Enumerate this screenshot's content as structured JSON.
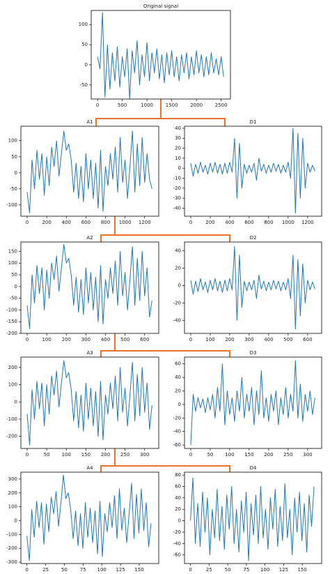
{
  "chart_data": [
    {
      "type": "line",
      "title": "Original signal",
      "color": "#1f77b4",
      "x": [
        0,
        50,
        100,
        150,
        200,
        250,
        300,
        350,
        400,
        450,
        500,
        550,
        600,
        650,
        700,
        750,
        800,
        850,
        900,
        950,
        1000,
        1050,
        1100,
        1150,
        1200,
        1250,
        1300,
        1350,
        1400,
        1450,
        1500,
        1550,
        1600,
        1650,
        1700,
        1750,
        1800,
        1850,
        1900,
        1950,
        2000,
        2050,
        2100,
        2150,
        2200,
        2250,
        2300,
        2350,
        2400,
        2450,
        2500,
        2550
      ],
      "values": [
        20,
        -10,
        130,
        -80,
        50,
        -60,
        30,
        -40,
        45,
        -55,
        20,
        -30,
        40,
        -85,
        35,
        -20,
        60,
        -50,
        25,
        -30,
        55,
        -40,
        30,
        -20,
        40,
        -35,
        25,
        -45,
        30,
        -25,
        35,
        -30,
        20,
        -40,
        25,
        -20,
        30,
        -35,
        20,
        -25,
        35,
        -20,
        25,
        -30,
        20,
        -25,
        30,
        -20,
        15,
        -25,
        20,
        -30
      ],
      "xlim": [
        -128,
        2688
      ],
      "xticks": [
        0,
        500,
        1000,
        1500,
        2000,
        2500
      ],
      "ylim": [
        -85,
        135
      ],
      "yticks": [
        -50,
        0,
        50,
        100
      ]
    },
    {
      "type": "line",
      "title": "A1",
      "color": "#1f77b4",
      "x": [
        0,
        25,
        50,
        75,
        100,
        125,
        150,
        175,
        200,
        225,
        250,
        275,
        300,
        325,
        350,
        375,
        400,
        425,
        450,
        475,
        500,
        525,
        550,
        575,
        600,
        625,
        650,
        675,
        700,
        725,
        750,
        775,
        800,
        825,
        850,
        875,
        900,
        925,
        950,
        975,
        1000,
        1025,
        1050,
        1075,
        1100,
        1125,
        1150,
        1175,
        1200,
        1225,
        1250,
        1275
      ],
      "values": [
        -60,
        -125,
        40,
        -50,
        70,
        -20,
        60,
        -70,
        50,
        -40,
        80,
        20,
        100,
        -10,
        60,
        130,
        70,
        90,
        40,
        -60,
        30,
        -80,
        20,
        -90,
        60,
        -50,
        40,
        -80,
        30,
        -110,
        70,
        -120,
        20,
        -40,
        60,
        -20,
        80,
        -60,
        110,
        -30,
        40,
        -80,
        20,
        130,
        -60,
        90,
        -40,
        110,
        -30,
        60,
        -20,
        -50
      ],
      "xlim": [
        -64,
        1344
      ],
      "xticks": [
        0,
        200,
        400,
        600,
        800,
        1000,
        1200
      ],
      "ylim": [
        -135,
        145
      ],
      "yticks": [
        -100,
        -50,
        0,
        50,
        100
      ]
    },
    {
      "type": "line",
      "title": "D1",
      "color": "#1f77b4",
      "x": [
        0,
        25,
        50,
        75,
        100,
        125,
        150,
        175,
        200,
        225,
        250,
        275,
        300,
        325,
        350,
        375,
        400,
        425,
        450,
        475,
        500,
        525,
        550,
        575,
        600,
        625,
        650,
        675,
        700,
        725,
        750,
        775,
        800,
        825,
        850,
        875,
        900,
        925,
        950,
        975,
        1000,
        1025,
        1050,
        1075,
        1100,
        1125,
        1150,
        1175,
        1200,
        1225,
        1250,
        1275
      ],
      "values": [
        5,
        -8,
        4,
        -5,
        6,
        -4,
        3,
        -6,
        5,
        -4,
        6,
        -5,
        4,
        -6,
        5,
        -5,
        6,
        -4,
        30,
        -30,
        25,
        -20,
        4,
        -5,
        3,
        -4,
        5,
        -12,
        10,
        -3,
        4,
        -5,
        3,
        -4,
        5,
        -3,
        4,
        -5,
        3,
        -4,
        6,
        -10,
        40,
        -45,
        35,
        -30,
        30,
        -20,
        5,
        -4,
        3,
        -3
      ],
      "xlim": [
        -64,
        1344
      ],
      "xticks": [
        0,
        200,
        400,
        600,
        800,
        1000,
        1200
      ],
      "ylim": [
        -48,
        42
      ],
      "yticks": [
        -40,
        -30,
        -20,
        -10,
        0,
        10,
        20,
        30,
        40
      ]
    },
    {
      "type": "line",
      "title": "A2",
      "color": "#1f77b4",
      "x": [
        0,
        12.5,
        25,
        37.5,
        50,
        62.5,
        75,
        87.5,
        100,
        112.5,
        125,
        137.5,
        150,
        162.5,
        175,
        187.5,
        200,
        212.5,
        225,
        237.5,
        250,
        262.5,
        275,
        287.5,
        300,
        312.5,
        325,
        337.5,
        350,
        362.5,
        375,
        387.5,
        400,
        412.5,
        425,
        437.5,
        450,
        462.5,
        475,
        487.5,
        500,
        512.5,
        525,
        537.5,
        550,
        562.5,
        575,
        587.5,
        600,
        612.5,
        625,
        637.5
      ],
      "values": [
        -80,
        -180,
        50,
        -70,
        90,
        -30,
        80,
        -100,
        70,
        -50,
        100,
        30,
        130,
        -20,
        80,
        180,
        100,
        120,
        50,
        -80,
        40,
        -110,
        30,
        -120,
        80,
        -70,
        60,
        -100,
        40,
        -150,
        90,
        -160,
        30,
        -50,
        80,
        -30,
        110,
        -80,
        150,
        -40,
        60,
        -100,
        30,
        170,
        -80,
        120,
        -60,
        150,
        -40,
        80,
        -130,
        -60
      ],
      "xlim": [
        -32,
        672
      ],
      "xticks": [
        0,
        100,
        200,
        300,
        400,
        500,
        600
      ],
      "ylim": [
        -200,
        190
      ],
      "yticks": [
        -200,
        -150,
        -100,
        -50,
        0,
        50,
        100,
        150
      ]
    },
    {
      "type": "line",
      "title": "D2",
      "color": "#1f77b4",
      "x": [
        0,
        12.5,
        25,
        37.5,
        50,
        62.5,
        75,
        87.5,
        100,
        112.5,
        125,
        137.5,
        150,
        162.5,
        175,
        187.5,
        200,
        212.5,
        225,
        237.5,
        250,
        262.5,
        275,
        287.5,
        300,
        312.5,
        325,
        337.5,
        350,
        362.5,
        375,
        387.5,
        400,
        412.5,
        425,
        437.5,
        450,
        462.5,
        475,
        487.5,
        500,
        512.5,
        525,
        537.5,
        550,
        562.5,
        575,
        587.5,
        600,
        612.5,
        625,
        637.5
      ],
      "values": [
        6,
        -10,
        5,
        -7,
        8,
        -5,
        4,
        -8,
        6,
        -5,
        8,
        -6,
        5,
        -8,
        6,
        -6,
        8,
        -5,
        45,
        -40,
        35,
        -25,
        5,
        -6,
        4,
        -5,
        6,
        -15,
        12,
        -4,
        5,
        -6,
        4,
        -5,
        6,
        -4,
        5,
        -6,
        4,
        -5,
        8,
        -15,
        35,
        -50,
        30,
        -35,
        25,
        -20,
        6,
        -5,
        4,
        -4
      ],
      "xlim": [
        -32,
        672
      ],
      "xticks": [
        0,
        100,
        200,
        300,
        400,
        500,
        600
      ],
      "ylim": [
        -55,
        50
      ],
      "yticks": [
        -40,
        -20,
        0,
        20,
        40
      ]
    },
    {
      "type": "line",
      "title": "A3",
      "color": "#1f77b4",
      "x": [
        0,
        6.25,
        12.5,
        18.75,
        25,
        31.25,
        37.5,
        43.75,
        50,
        56.25,
        62.5,
        68.75,
        75,
        81.25,
        87.5,
        93.75,
        100,
        106.25,
        112.5,
        118.75,
        125,
        131.25,
        137.5,
        143.75,
        150,
        156.25,
        162.5,
        168.75,
        175,
        181.25,
        187.5,
        193.75,
        200,
        206.25,
        212.5,
        218.75,
        225,
        231.25,
        237.5,
        243.75,
        250,
        256.25,
        262.5,
        268.75,
        275,
        281.25,
        287.5,
        293.75,
        300,
        306.25,
        312.5,
        318.75
      ],
      "values": [
        -70,
        -250,
        70,
        -100,
        120,
        -40,
        110,
        -140,
        100,
        -70,
        150,
        40,
        180,
        -30,
        110,
        240,
        140,
        170,
        70,
        -110,
        60,
        -150,
        40,
        -170,
        110,
        -100,
        80,
        -140,
        60,
        -200,
        120,
        -220,
        40,
        -70,
        110,
        -40,
        150,
        -110,
        200,
        -60,
        80,
        -140,
        40,
        230,
        -110,
        160,
        -80,
        200,
        -60,
        110,
        -160,
        -20
      ],
      "xlim": [
        -16,
        336
      ],
      "xticks": [
        0,
        50,
        100,
        150,
        200,
        250,
        300
      ],
      "ylim": [
        -270,
        260
      ],
      "yticks": [
        -200,
        -100,
        0,
        100,
        200
      ]
    },
    {
      "type": "line",
      "title": "D3",
      "color": "#1f77b4",
      "x": [
        0,
        6.25,
        12.5,
        18.75,
        25,
        31.25,
        37.5,
        43.75,
        50,
        56.25,
        62.5,
        68.75,
        75,
        81.25,
        87.5,
        93.75,
        100,
        106.25,
        112.5,
        118.75,
        125,
        131.25,
        137.5,
        143.75,
        150,
        156.25,
        162.5,
        168.75,
        175,
        181.25,
        187.5,
        193.75,
        200,
        206.25,
        212.5,
        218.75,
        225,
        231.25,
        237.5,
        243.75,
        250,
        256.25,
        262.5,
        268.75,
        275,
        281.25,
        287.5,
        293.75,
        300,
        306.25,
        312.5,
        318.75
      ],
      "values": [
        -60,
        15,
        -10,
        10,
        -5,
        8,
        -12,
        10,
        -8,
        15,
        -20,
        25,
        -10,
        60,
        -30,
        20,
        -15,
        10,
        -25,
        20,
        -10,
        40,
        -20,
        15,
        -10,
        25,
        -30,
        20,
        -15,
        50,
        -20,
        10,
        -25,
        15,
        -10,
        20,
        -30,
        10,
        -15,
        25,
        -20,
        15,
        -10,
        65,
        -20,
        30,
        -25,
        15,
        -10,
        20,
        -15,
        10
      ],
      "xlim": [
        -16,
        336
      ],
      "xticks": [
        0,
        50,
        100,
        150,
        200,
        250,
        300
      ],
      "ylim": [
        -65,
        70
      ],
      "yticks": [
        -60,
        -40,
        -20,
        0,
        20,
        40,
        60
      ]
    },
    {
      "type": "line",
      "title": "A4",
      "color": "#1f77b4",
      "x": [
        0,
        3.25,
        6.5,
        9.75,
        13,
        16.25,
        19.5,
        22.75,
        26,
        29.25,
        32.5,
        35.75,
        39,
        42.25,
        45.5,
        48.75,
        52,
        55.25,
        58.5,
        61.75,
        65,
        68.25,
        71.5,
        74.75,
        78,
        81.25,
        84.5,
        87.75,
        91,
        94.25,
        97.5,
        100.75,
        104,
        107.25,
        110.5,
        113.75,
        117,
        120.25,
        123.5,
        126.75,
        130,
        133.25,
        136.5,
        139.75,
        143,
        146.25,
        149.5,
        152.75,
        156,
        159.25,
        162.5,
        165.75
      ],
      "values": [
        -110,
        -290,
        80,
        -120,
        140,
        -50,
        130,
        -170,
        120,
        -80,
        170,
        50,
        210,
        -40,
        130,
        330,
        160,
        200,
        80,
        -130,
        70,
        -180,
        50,
        -200,
        130,
        -120,
        90,
        -160,
        70,
        -240,
        140,
        -260,
        50,
        -80,
        130,
        -50,
        180,
        -130,
        230,
        -70,
        90,
        -160,
        50,
        270,
        -130,
        190,
        -90,
        230,
        -70,
        130,
        -190,
        -20
      ],
      "xlim": [
        -8,
        176
      ],
      "xticks": [
        0,
        25,
        50,
        75,
        100,
        125,
        150
      ],
      "ylim": [
        -310,
        350
      ],
      "yticks": [
        -300,
        -200,
        -100,
        0,
        100,
        200,
        300
      ]
    },
    {
      "type": "line",
      "title": "D4",
      "color": "#1f77b4",
      "x": [
        0,
        3.25,
        6.5,
        9.75,
        13,
        16.25,
        19.5,
        22.75,
        26,
        29.25,
        32.5,
        35.75,
        39,
        42.25,
        45.5,
        48.75,
        52,
        55.25,
        58.5,
        61.75,
        65,
        68.25,
        71.5,
        74.75,
        78,
        81.25,
        84.5,
        87.75,
        91,
        94.25,
        97.5,
        100.75,
        104,
        107.25,
        110.5,
        113.75,
        117,
        120.25,
        123.5,
        126.75,
        130,
        133.25,
        136.5,
        139.75,
        143,
        146.25,
        149.5,
        152.75,
        156,
        159.25,
        162.5,
        165.75
      ],
      "values": [
        0,
        75,
        -40,
        30,
        -45,
        50,
        -20,
        40,
        -60,
        20,
        -30,
        55,
        -35,
        25,
        -50,
        45,
        -15,
        60,
        -40,
        20,
        -55,
        35,
        -20,
        50,
        -70,
        30,
        -25,
        45,
        -40,
        60,
        -30,
        20,
        -50,
        40,
        -15,
        55,
        -45,
        25,
        -35,
        65,
        -30,
        20,
        -60,
        40,
        -20,
        50,
        -35,
        30,
        -55,
        45,
        -10,
        60
      ],
      "xlim": [
        -8,
        176
      ],
      "xticks": [
        0,
        25,
        50,
        75,
        100,
        125,
        150
      ],
      "ylim": [
        -75,
        85
      ],
      "yticks": [
        -60,
        -40,
        -20,
        0,
        20,
        40,
        60,
        80
      ]
    }
  ]
}
